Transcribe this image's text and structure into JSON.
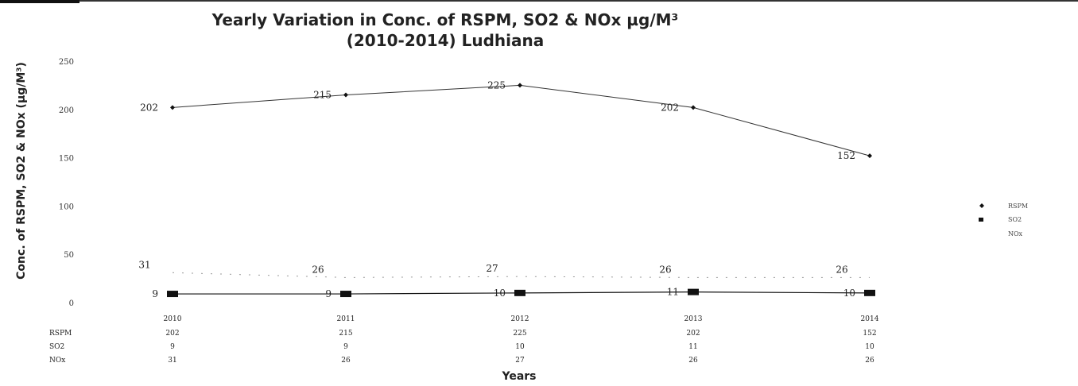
{
  "chart_data": {
    "type": "line",
    "title": "Yearly Variation in Conc. of RSPM, SO2 & NOx µg/M³",
    "subtitle": "(2010-2014) Ludhiana",
    "xlabel": "Years",
    "ylabel": "Conc. of RSPM, SO2 & NOx (µg/M³)",
    "ylim": [
      0,
      250
    ],
    "yticks": [
      "0",
      "50",
      "100",
      "150",
      "200",
      "250"
    ],
    "categories": [
      "2010",
      "2011",
      "2012",
      "2013",
      "2014"
    ],
    "categories_table_text": [
      "2010",
      "2011",
      "2012",
      "2013",
      "2014"
    ],
    "series": [
      {
        "name": "RSPM",
        "values": [
          202,
          215,
          225,
          202,
          152
        ],
        "labels": [
          "202",
          "215",
          "225",
          "202",
          "152"
        ],
        "color": "#333333"
      },
      {
        "name": "SO2",
        "values": [
          9,
          9,
          10,
          11,
          10
        ],
        "labels": [
          "9",
          "9",
          "10",
          "11",
          "10"
        ],
        "color": "#111111"
      },
      {
        "name": "NOx",
        "values": [
          31,
          26,
          27,
          26,
          26
        ],
        "labels": [
          "31",
          "26",
          "27",
          "26",
          "26"
        ],
        "color": "#999999"
      }
    ],
    "table": {
      "row_labels": [
        "RSPM",
        "SO2",
        "NOx"
      ],
      "rows": [
        [
          "202",
          "215",
          "225",
          "202",
          "152"
        ],
        [
          "9",
          "9",
          "10",
          "11",
          "10"
        ],
        [
          "31",
          "26",
          "27",
          "26",
          "26"
        ]
      ]
    },
    "legend_position": "right",
    "grid": false
  }
}
